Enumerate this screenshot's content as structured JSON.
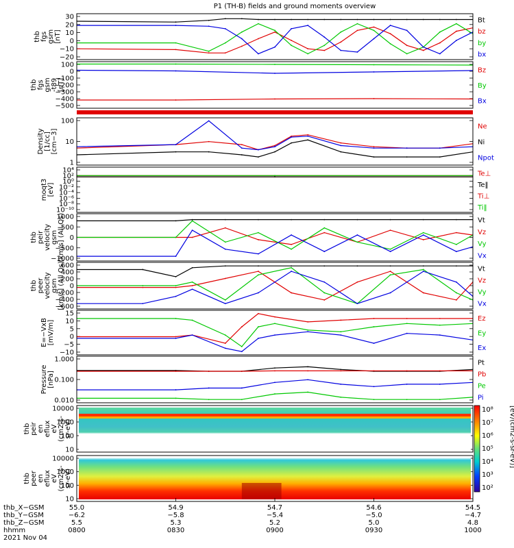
{
  "title": "P1 (TH-B) fields and ground moments overview",
  "colors": {
    "black": "#000000",
    "red": "#e00000",
    "green": "#00c800",
    "blue": "#0000e0"
  },
  "colorbar_ticks": [
    "10⁸",
    "10⁷",
    "10⁶",
    "10⁵",
    "10⁴",
    "10³",
    "10²"
  ],
  "colorbar_label": "[eV/(cm2-s-sr-eV)]",
  "panels": [
    {
      "id": "fgs_gsm",
      "ylabel": [
        "thb",
        "fgs",
        "gsm",
        "[nT]"
      ],
      "yticks": [
        "30",
        "20",
        "10",
        "0",
        "−10",
        "−20"
      ],
      "ylim": [
        -25,
        30
      ],
      "scale": "linear",
      "legend": [
        {
          "text": "Bt",
          "color": "black"
        },
        {
          "text": "bz",
          "color": "red"
        },
        {
          "text": "by",
          "color": "green"
        },
        {
          "text": "bx",
          "color": "blue"
        }
      ]
    },
    {
      "id": "fgs_gsm_t89",
      "ylabel": [
        "thb",
        "fgs",
        "gsm",
        "-t89",
        "[nT]"
      ],
      "yticks": [
        "100",
        "0",
        "−100",
        "−200",
        "−300",
        "−400",
        "−500"
      ],
      "ylim": [
        -560,
        120
      ],
      "scale": "linear",
      "legend": [
        {
          "text": "Bz",
          "color": "red"
        },
        {
          "text": "By",
          "color": "green"
        },
        {
          "text": "Bx",
          "color": "blue"
        }
      ]
    },
    {
      "id": "density",
      "ylabel": [
        "Density",
        "[1/cc]",
        "[cm−3]"
      ],
      "yticks": [
        "100",
        "10",
        "1"
      ],
      "ylim": [
        0.5,
        300
      ],
      "scale": "log",
      "legend": [
        {
          "text": "Ne",
          "color": "red"
        },
        {
          "text": "Ni",
          "color": "black"
        },
        {
          "text": "Npot",
          "color": "blue"
        }
      ]
    },
    {
      "id": "temperature",
      "ylabel": [
        "moqt3",
        "[eV]"
      ],
      "yticks": [
        "10⁴",
        "10²",
        "10⁰",
        "10⁻²",
        "10⁻⁴",
        "10⁻⁶",
        "10⁻⁸",
        "10⁻¹⁰"
      ],
      "ylim": [
        -11,
        4.5
      ],
      "scale": "log",
      "legend": [
        {
          "text": "Te⊥",
          "color": "red"
        },
        {
          "text": "Te‖",
          "color": "black"
        },
        {
          "text": "Ti⊥",
          "color": "red"
        },
        {
          "text": "Ti‖",
          "color": "green"
        }
      ]
    },
    {
      "id": "peir_velocity",
      "ylabel": [
        "thb",
        "peir",
        "velocity",
        "gsm",
        "[km/s] (All Qs)"
      ],
      "yticks": [
        "1000",
        "500",
        "0",
        "−500",
        "−1000"
      ],
      "ylim": [
        -1000,
        1000
      ],
      "scale": "linear",
      "legend": [
        {
          "text": "Vt",
          "color": "black"
        },
        {
          "text": "Vz",
          "color": "red"
        },
        {
          "text": "Vy",
          "color": "green"
        },
        {
          "text": "Vx",
          "color": "blue"
        }
      ]
    },
    {
      "id": "peer_velocity",
      "ylabel": [
        "thb",
        "peer",
        "velocity",
        "gsm",
        "[km/s] (All Qs)"
      ],
      "yticks": [
        "600",
        "400",
        "200",
        "0",
        "−200",
        "−400",
        "−600"
      ],
      "ylim": [
        -650,
        650
      ],
      "scale": "linear",
      "legend": [
        {
          "text": "Vt",
          "color": "black"
        },
        {
          "text": "Vz",
          "color": "red"
        },
        {
          "text": "Vy",
          "color": "green"
        },
        {
          "text": "Vx",
          "color": "blue"
        }
      ]
    },
    {
      "id": "efield",
      "ylabel": [
        "E=−VxB",
        "[mV/m]"
      ],
      "yticks": [
        "15",
        "10",
        "5",
        "0",
        "−5",
        "−10"
      ],
      "ylim": [
        -12,
        15
      ],
      "scale": "linear",
      "legend": [
        {
          "text": "Ez",
          "color": "red"
        },
        {
          "text": "Ey",
          "color": "green"
        },
        {
          "text": "Ex",
          "color": "blue"
        }
      ]
    },
    {
      "id": "pressure",
      "ylabel": [
        "Pressure",
        "[nPa]"
      ],
      "yticks": [
        "1.000",
        "0.100",
        "0.010"
      ],
      "ylim": [
        0.004,
        1.3
      ],
      "scale": "log",
      "legend": [
        {
          "text": "Pt",
          "color": "black"
        },
        {
          "text": "Pb",
          "color": "red"
        },
        {
          "text": "Pe",
          "color": "green"
        },
        {
          "text": "Pi",
          "color": "blue"
        }
      ]
    },
    {
      "id": "peir_eflux",
      "ylabel": [
        "thb",
        "peir",
        "en",
        "eflux",
        "eV",
        "(cm2-s-",
        "sr-eV)"
      ],
      "yticks": [
        "10000",
        "1000",
        "100",
        "10"
      ],
      "ylim": [
        5,
        20000
      ],
      "scale": "log"
    },
    {
      "id": "peer_eflux",
      "ylabel": [
        "thb",
        "peer",
        "en",
        "eflux",
        "eV",
        "(cm2-s-",
        "sr-eV)"
      ],
      "yticks": [
        "10000",
        "1000",
        "100",
        "10"
      ],
      "ylim": [
        5,
        20000
      ],
      "scale": "log"
    }
  ],
  "xaxis": {
    "row_labels": [
      "thb_X−GSM",
      "thb_Y−GSM",
      "thb_Z−GSM",
      "hhmm",
      "2021 Nov 04"
    ],
    "ticks": [
      {
        "x": "55.0",
        "y": "−6.2",
        "z": "5.5",
        "t": "0800"
      },
      {
        "x": "54.9",
        "y": "−5.8",
        "z": "5.3",
        "t": "0830"
      },
      {
        "x": "54.7",
        "y": "−5.4",
        "z": "5.2",
        "t": "0900"
      },
      {
        "x": "54.6",
        "y": "−5.0",
        "z": "5.0",
        "t": "0930"
      },
      {
        "x": "54.5",
        "y": "−4.7",
        "z": "4.8",
        "t": "1000"
      }
    ],
    "xlim": [
      0,
      120
    ]
  },
  "chart_data": [
    {
      "type": "line",
      "title": "P1 (TH-B) fields and ground moments overview",
      "ylabel": "thb fgs gsm [nT]",
      "x": [
        0,
        30,
        40,
        45,
        50,
        55,
        60,
        65,
        70,
        75,
        80,
        85,
        90,
        95,
        100,
        105,
        110,
        115,
        120
      ],
      "ylim": [
        -25,
        30
      ],
      "series": [
        {
          "name": "Bt",
          "values": [
            21,
            20,
            22,
            24,
            24,
            23,
            23,
            23,
            23,
            23,
            23,
            23,
            23,
            23,
            23,
            23,
            23,
            23,
            23
          ]
        },
        {
          "name": "bz",
          "values": [
            -12,
            -13,
            -17,
            -17,
            -9,
            0,
            8,
            -2,
            -12,
            -14,
            -4,
            10,
            14,
            6,
            -8,
            -14,
            -5,
            9,
            13
          ]
        },
        {
          "name": "by",
          "values": [
            -5,
            -5,
            -15,
            -5,
            8,
            18,
            10,
            -8,
            -18,
            -8,
            8,
            18,
            10,
            -6,
            -18,
            -10,
            8,
            18,
            6
          ]
        },
        {
          "name": "bx",
          "values": [
            16,
            16,
            15,
            12,
            0,
            -18,
            -10,
            12,
            16,
            2,
            -14,
            -16,
            0,
            16,
            10,
            -10,
            -18,
            -2,
            8
          ]
        }
      ]
    },
    {
      "type": "line",
      "ylabel": "thb fgs gsm-t89 [nT]",
      "x": [
        0,
        30,
        60,
        90,
        120
      ],
      "ylim": [
        -560,
        120
      ],
      "series": [
        {
          "name": "Bz",
          "values": [
            -440,
            -440,
            -425,
            -420,
            -425
          ]
        },
        {
          "name": "By",
          "values": [
            85,
            85,
            80,
            75,
            70
          ]
        },
        {
          "name": "Bx",
          "values": [
            -5,
            -15,
            -50,
            -30,
            -10
          ]
        }
      ]
    },
    {
      "type": "line",
      "ylabel": "Density [cm−3]",
      "x": [
        0,
        30,
        40,
        50,
        55,
        60,
        65,
        70,
        80,
        90,
        100,
        110,
        120
      ],
      "ylim": [
        0.5,
        300
      ],
      "series": [
        {
          "name": "Ne",
          "values": [
            5,
            8,
            12,
            8,
            4,
            7,
            25,
            30,
            10,
            6,
            5,
            5,
            9
          ]
        },
        {
          "name": "Ni",
          "values": [
            2,
            3,
            3,
            2,
            1.5,
            3,
            10,
            15,
            3,
            1.5,
            1.5,
            1.5,
            3
          ]
        },
        {
          "name": "Npot",
          "values": [
            6,
            8,
            200,
            5,
            4,
            6,
            22,
            25,
            7,
            5,
            5,
            5,
            6
          ]
        }
      ]
    },
    {
      "type": "line",
      "ylabel": "moqt3 [eV]",
      "x": [
        0,
        60,
        120
      ],
      "ylim": [
        -11,
        4.5
      ],
      "series": [
        {
          "name": "Te⊥",
          "values": [
            1.2,
            1.2,
            1.2
          ]
        },
        {
          "name": "Te‖",
          "values": [
            1.2,
            1.2,
            1.2
          ]
        },
        {
          "name": "Ti⊥",
          "values": [
            1.6,
            1.6,
            1.6
          ]
        },
        {
          "name": "Ti‖",
          "values": [
            1.6,
            1.6,
            1.6
          ]
        }
      ]
    },
    {
      "type": "line",
      "ylabel": "thb peir velocity gsm [km/s] (All Qs)",
      "x": [
        0,
        30,
        35,
        45,
        55,
        65,
        75,
        85,
        95,
        105,
        115,
        120
      ],
      "ylim": [
        -1000,
        1000
      ],
      "series": [
        {
          "name": "Vt",
          "values": [
            700,
            700,
            750,
            750,
            750,
            750,
            750,
            750,
            750,
            750,
            750,
            750
          ]
        },
        {
          "name": "Vz",
          "values": [
            0,
            0,
            0,
            400,
            -100,
            -300,
            200,
            -200,
            300,
            -100,
            200,
            100
          ]
        },
        {
          "name": "Vy",
          "values": [
            0,
            0,
            700,
            -200,
            200,
            -500,
            400,
            -200,
            -500,
            200,
            -300,
            100
          ]
        },
        {
          "name": "Vx",
          "values": [
            -800,
            -800,
            300,
            -500,
            -700,
            100,
            -600,
            100,
            -600,
            100,
            -600,
            -400
          ]
        }
      ]
    },
    {
      "type": "line",
      "ylabel": "thb peer velocity gsm [km/s] (All Qs)",
      "x": [
        0,
        20,
        30,
        35,
        45,
        55,
        65,
        75,
        85,
        95,
        105,
        115,
        120
      ],
      "ylim": [
        -650,
        650
      ],
      "series": [
        {
          "name": "Vt",
          "values": [
            450,
            450,
            250,
            500,
            550,
            550,
            550,
            550,
            550,
            550,
            550,
            550,
            550
          ]
        },
        {
          "name": "Vz",
          "values": [
            -50,
            -50,
            -50,
            0,
            200,
            400,
            -200,
            -400,
            100,
            400,
            -200,
            -400,
            100
          ]
        },
        {
          "name": "Vy",
          "values": [
            0,
            0,
            0,
            100,
            -400,
            300,
            500,
            -200,
            -500,
            300,
            450,
            -200,
            -400
          ]
        },
        {
          "name": "Vx",
          "values": [
            -500,
            -500,
            -300,
            -100,
            -500,
            -200,
            400,
            100,
            -500,
            -200,
            400,
            100,
            -300
          ]
        }
      ]
    },
    {
      "type": "line",
      "ylabel": "E=−VxB [mV/m]",
      "x": [
        0,
        30,
        35,
        45,
        50,
        55,
        60,
        70,
        80,
        90,
        100,
        110,
        120
      ],
      "ylim": [
        -12,
        15
      ],
      "series": [
        {
          "name": "Ez",
          "values": [
            -1,
            -1,
            0,
            -5,
            5,
            13,
            11,
            8,
            9,
            10,
            10,
            10,
            10
          ]
        },
        {
          "name": "Ey",
          "values": [
            10,
            10,
            9,
            0,
            -7,
            5,
            7,
            3,
            2,
            5,
            7,
            6,
            7
          ]
        },
        {
          "name": "Ex",
          "values": [
            -2,
            -2,
            0,
            -8,
            -10,
            -2,
            0,
            2,
            0,
            -5,
            1,
            0,
            -3
          ]
        }
      ]
    },
    {
      "type": "line",
      "ylabel": "Pressure [nPa]",
      "x": [
        0,
        30,
        40,
        50,
        60,
        70,
        80,
        90,
        100,
        110,
        120
      ],
      "ylim": [
        0.004,
        1.3
      ],
      "series": [
        {
          "name": "Pt",
          "values": [
            0.22,
            0.22,
            0.2,
            0.2,
            0.3,
            0.35,
            0.25,
            0.2,
            0.2,
            0.2,
            0.25
          ]
        },
        {
          "name": "Pb",
          "values": [
            0.2,
            0.2,
            0.2,
            0.2,
            0.21,
            0.21,
            0.21,
            0.21,
            0.21,
            0.21,
            0.21
          ]
        },
        {
          "name": "Pe",
          "values": [
            0.007,
            0.007,
            0.006,
            0.006,
            0.012,
            0.015,
            0.008,
            0.006,
            0.006,
            0.006,
            0.008
          ]
        },
        {
          "name": "Pi",
          "values": [
            0.02,
            0.02,
            0.025,
            0.025,
            0.05,
            0.07,
            0.04,
            0.03,
            0.04,
            0.04,
            0.05
          ]
        }
      ]
    },
    {
      "type": "heatmap",
      "ylabel": "thb peir en eflux eV/(cm2-s-sr-eV)",
      "ylim": [
        5,
        20000
      ],
      "x": [
        0,
        120
      ]
    },
    {
      "type": "heatmap",
      "ylabel": "thb peer en eflux eV/(cm2-s-sr-eV)",
      "ylim": [
        5,
        20000
      ],
      "x": [
        0,
        120
      ]
    }
  ]
}
